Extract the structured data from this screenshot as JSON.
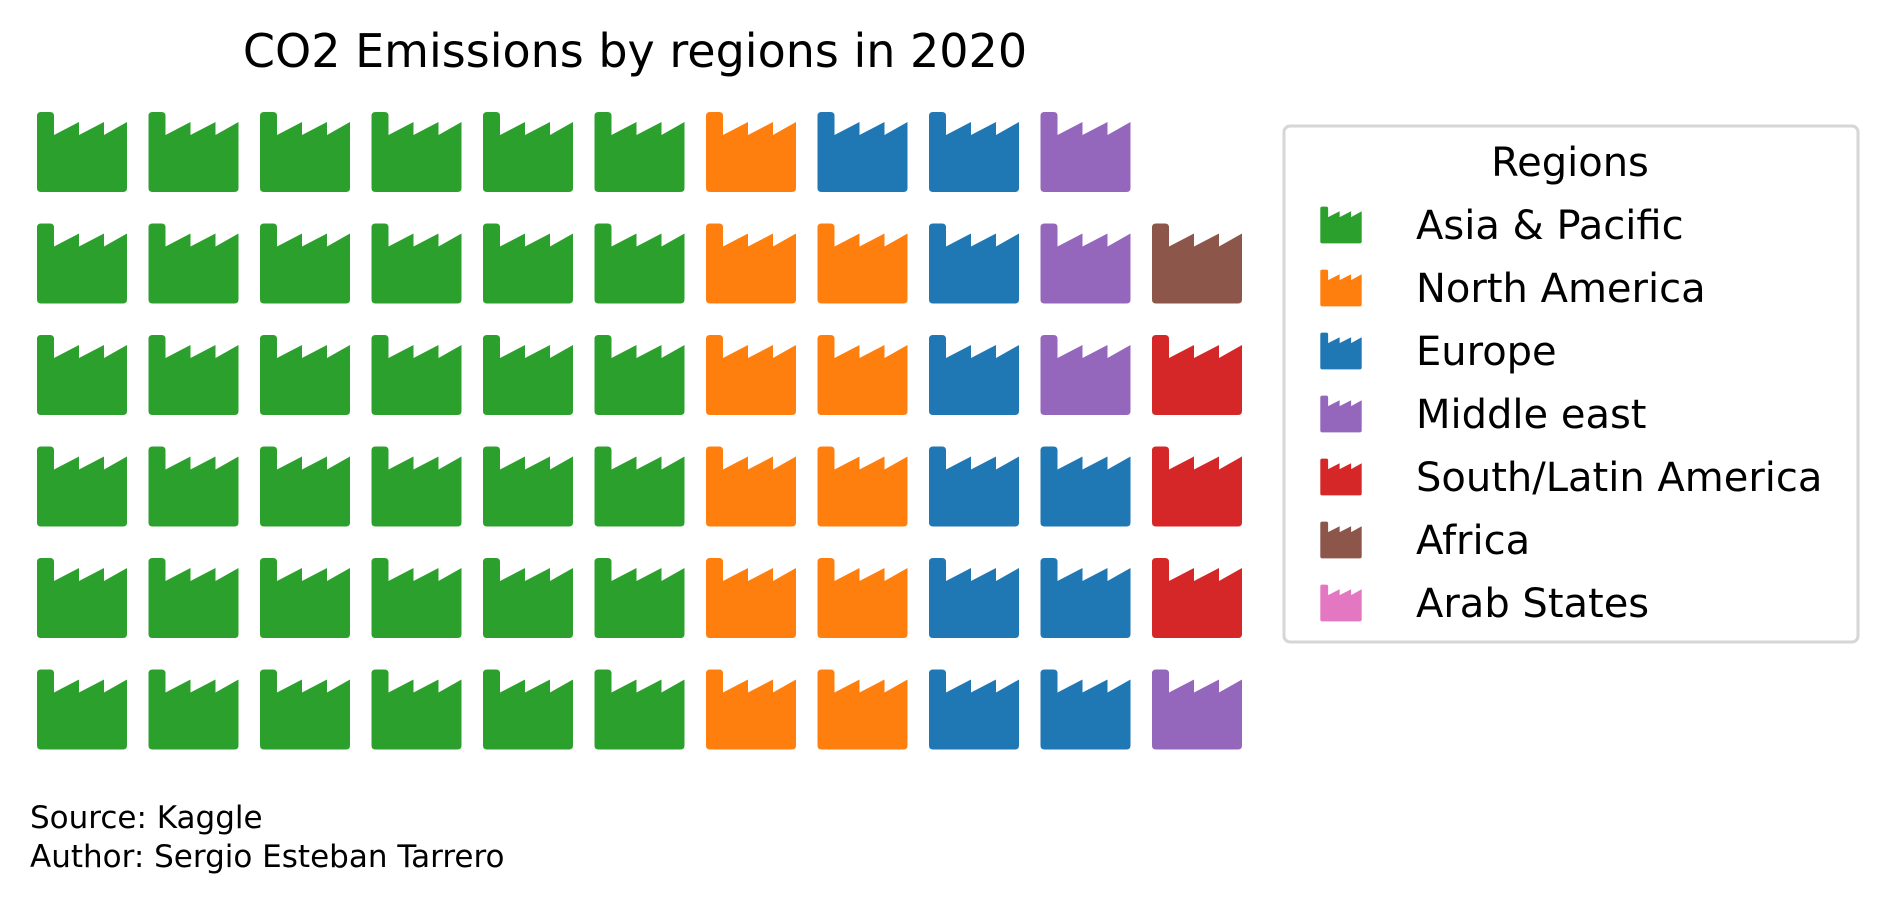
{
  "chart_data": {
    "type": "waffle",
    "title": "CO2 Emissions by regions in 2020",
    "rows": 6,
    "columns": 11,
    "icon": "factory-icon",
    "legend": {
      "title": "Regions",
      "placement": "right"
    },
    "series": [
      {
        "name": "Asia & Pacific",
        "value": 36,
        "color": "#2ca02c"
      },
      {
        "name": "North America",
        "value": 11,
        "color": "#ff7f0e"
      },
      {
        "name": "Europe",
        "value": 10,
        "color": "#1f77b4"
      },
      {
        "name": "Middle east",
        "value": 4,
        "color": "#9467bd"
      },
      {
        "name": "South/Latin America",
        "value": 3,
        "color": "#d62728"
      },
      {
        "name": "Africa",
        "value": 1,
        "color": "#8c564b"
      },
      {
        "name": "Arab States",
        "value": 0,
        "color": "#e377c2"
      }
    ]
  },
  "caption": {
    "source": "Source: Kaggle",
    "author": "Author: Sergio Esteban Tarrero"
  }
}
